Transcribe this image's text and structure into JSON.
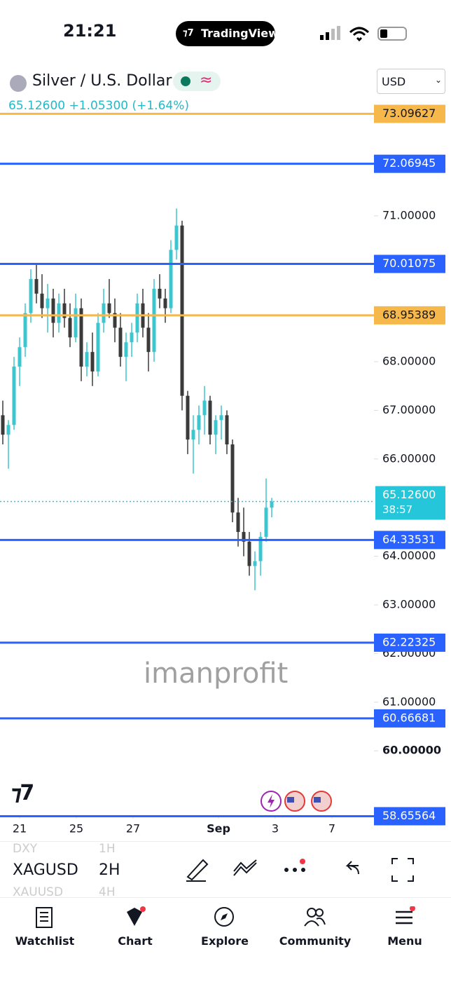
{
  "status_bar": {
    "time": "21:21",
    "app": "TradingView"
  },
  "header": {
    "symbol_name": "Silver / U.S. Dollar",
    "price": "65.12600",
    "change": "+1.05300",
    "change_pct": "(+1.64%)",
    "currency": "USD"
  },
  "watermark": "imanprofit",
  "chart_data": {
    "type": "candlestick",
    "x": [
      0,
      1,
      2,
      3,
      4,
      5,
      6,
      7,
      8,
      9,
      10,
      11,
      12,
      13,
      14,
      15,
      16,
      17,
      18,
      19,
      20,
      21,
      22,
      23,
      24,
      25,
      26,
      27,
      28,
      29,
      30,
      31,
      32,
      33,
      34,
      35,
      36,
      37,
      38,
      39,
      40,
      41,
      42,
      43,
      44,
      45,
      46,
      47,
      48
    ],
    "open": [
      66.9,
      66.5,
      66.7,
      67.9,
      68.3,
      69.0,
      69.7,
      69.4,
      69.1,
      69.3,
      68.8,
      69.2,
      68.9,
      68.5,
      69.1,
      67.9,
      68.2,
      67.8,
      68.8,
      69.2,
      69.0,
      68.7,
      68.1,
      68.4,
      68.6,
      69.2,
      68.7,
      68.2,
      69.5,
      69.3,
      69.1,
      70.3,
      70.8,
      67.3,
      66.4,
      66.6,
      66.9,
      67.2,
      66.5,
      66.8,
      66.9,
      66.3,
      64.9,
      64.5,
      64.3,
      63.8,
      63.9,
      64.4,
      65.0
    ],
    "high": [
      67.2,
      66.8,
      68.1,
      68.5,
      69.2,
      69.9,
      70.0,
      69.8,
      69.6,
      69.5,
      69.4,
      69.5,
      69.2,
      69.4,
      69.3,
      68.4,
      68.6,
      69.0,
      69.5,
      69.7,
      69.3,
      69.0,
      68.6,
      68.8,
      69.4,
      69.5,
      69.0,
      69.7,
      69.8,
      69.5,
      70.5,
      71.15,
      70.9,
      67.4,
      66.9,
      67.1,
      67.5,
      67.3,
      66.9,
      67.1,
      67.0,
      66.4,
      65.2,
      65.0,
      64.5,
      64.1,
      64.5,
      65.6,
      65.2
    ],
    "low": [
      66.3,
      65.8,
      66.6,
      67.5,
      68.1,
      68.8,
      69.2,
      68.9,
      68.6,
      68.5,
      68.6,
      68.7,
      68.3,
      68.4,
      67.6,
      67.7,
      67.5,
      67.7,
      68.6,
      68.9,
      68.4,
      67.9,
      67.6,
      68.1,
      68.4,
      68.5,
      67.8,
      68.0,
      69.1,
      68.8,
      69.0,
      70.1,
      67.0,
      66.1,
      65.7,
      66.3,
      66.5,
      66.3,
      66.1,
      66.4,
      66.1,
      64.7,
      64.2,
      64.0,
      63.6,
      63.3,
      63.6,
      64.3,
      64.8
    ],
    "close": [
      66.5,
      66.7,
      67.9,
      68.3,
      69.0,
      69.7,
      69.4,
      69.1,
      69.3,
      68.8,
      69.2,
      68.9,
      68.5,
      69.1,
      67.9,
      68.2,
      67.8,
      68.8,
      69.2,
      69.0,
      68.7,
      68.1,
      68.4,
      68.6,
      69.2,
      68.7,
      68.2,
      69.5,
      69.3,
      69.1,
      70.3,
      70.8,
      67.3,
      66.4,
      66.6,
      66.9,
      67.2,
      66.5,
      66.8,
      66.9,
      66.3,
      64.9,
      64.5,
      64.3,
      63.8,
      63.9,
      64.4,
      65.0,
      65.126
    ],
    "up_color": "#3cc6cf",
    "down_color": "#3a3a3a",
    "xlim": [
      -0.5,
      66.25
    ],
    "ylim": [
      58.72,
      74.14
    ],
    "xticks": [
      {
        "value": 3,
        "label": "21"
      },
      {
        "value": 13.125,
        "label": "25"
      },
      {
        "value": 23.25,
        "label": "27"
      },
      {
        "value": 38.5,
        "label": "Sep"
      },
      {
        "value": 48.625,
        "label": "3"
      },
      {
        "value": 58.75,
        "label": "7"
      }
    ],
    "yticks": [
      {
        "value": 71,
        "label": "71.00000"
      },
      {
        "value": 68,
        "label": "68.00000"
      },
      {
        "value": 67,
        "label": "67.00000"
      },
      {
        "value": 66,
        "label": "66.00000"
      },
      {
        "value": 64,
        "label": "64.00000"
      },
      {
        "value": 63,
        "label": "63.00000"
      },
      {
        "value": 62,
        "label": "62.00000"
      },
      {
        "value": 61,
        "label": "61.00000"
      },
      {
        "value": 60,
        "label": "60.00000"
      }
    ],
    "levels": [
      {
        "value": 73.09627,
        "color": "#f7b84b"
      },
      {
        "value": 72.06945,
        "color": "#2962ff"
      },
      {
        "value": 70.01075,
        "color": "#2962ff"
      },
      {
        "value": 68.95389,
        "color": "#f7b84b"
      },
      {
        "value": 64.33531,
        "color": "#2962ff"
      },
      {
        "value": 62.22325,
        "color": "#2962ff"
      },
      {
        "value": 60.66681,
        "color": "#2962ff"
      },
      {
        "value": 58.65564,
        "color": "#2962ff"
      }
    ],
    "last_price": {
      "value": 65.126,
      "label": "65.12600"
    },
    "countdown": "38:57",
    "last_price_color": "#26c6da"
  },
  "toolbar": {
    "symbol": "XAGUSD",
    "interval": "2H",
    "prev_symbol": "DXY",
    "prev_interval": "1H",
    "next_symbol": "XAUUSD",
    "next_interval": "4H"
  },
  "nav": [
    "Watchlist",
    "Chart",
    "Explore",
    "Community",
    "Menu"
  ]
}
